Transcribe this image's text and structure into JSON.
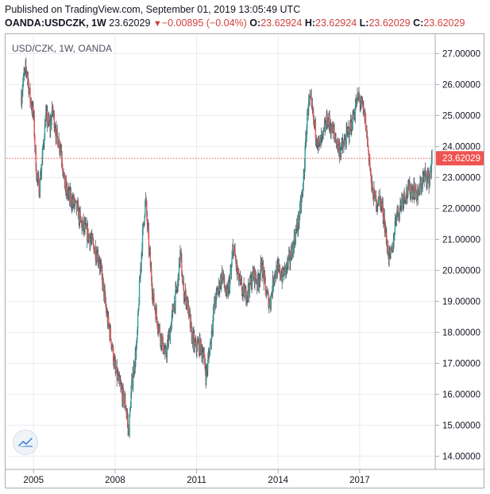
{
  "header": {
    "published": "Published on TradingView.com, September 01, 2019 13:05:49 UTC",
    "symbol": "OANDA:USDCZK, 1W",
    "last": "23.62029",
    "change_arrow": "▼",
    "change": "−0.00895 (−0.04%)",
    "o_label": "O:",
    "o_value": "23.62924",
    "h_label": "H:",
    "h_value": "23.62924",
    "l_label": "L:",
    "l_value": "23.62029",
    "c_label": "C:",
    "c_value": "23.62029"
  },
  "chart_data": {
    "type": "candlestick",
    "symbol_label": "USD/CZK, 1W, OANDA",
    "x_ticks": [
      "2005",
      "2008",
      "2011",
      "2014",
      "2017"
    ],
    "y_ticks": [
      "14.00000",
      "15.00000",
      "16.00000",
      "17.00000",
      "18.00000",
      "19.00000",
      "20.00000",
      "21.00000",
      "22.00000",
      "23.00000",
      "24.00000",
      "25.00000",
      "26.00000",
      "27.00000"
    ],
    "ylim": [
      13.6,
      27.6
    ],
    "xlim": [
      2004.0,
      2019.75
    ],
    "last_price": 23.62029,
    "last_price_label": "23.62029",
    "colors": {
      "up": "#26a69a",
      "down": "#ef5350",
      "wick": "#555b66",
      "price_line": "#ef5350"
    },
    "grid": true,
    "anchors": [
      [
        2004.55,
        25.6
      ],
      [
        2004.65,
        26.3
      ],
      [
        2004.75,
        26.5
      ],
      [
        2004.85,
        25.7
      ],
      [
        2005.0,
        25.0
      ],
      [
        2005.1,
        23.2
      ],
      [
        2005.2,
        22.6
      ],
      [
        2005.3,
        23.4
      ],
      [
        2005.45,
        25.0
      ],
      [
        2005.6,
        24.6
      ],
      [
        2005.7,
        25.2
      ],
      [
        2005.85,
        24.3
      ],
      [
        2006.0,
        24.0
      ],
      [
        2006.15,
        22.7
      ],
      [
        2006.3,
        22.4
      ],
      [
        2006.45,
        22.2
      ],
      [
        2006.6,
        22.0
      ],
      [
        2006.75,
        21.5
      ],
      [
        2006.9,
        21.3
      ],
      [
        2007.1,
        21.0
      ],
      [
        2007.25,
        20.7
      ],
      [
        2007.4,
        20.4
      ],
      [
        2007.55,
        19.6
      ],
      [
        2007.7,
        18.5
      ],
      [
        2007.85,
        17.8
      ],
      [
        2008.0,
        16.8
      ],
      [
        2008.2,
        16.2
      ],
      [
        2008.4,
        15.6
      ],
      [
        2008.5,
        14.7
      ],
      [
        2008.6,
        16.2
      ],
      [
        2008.8,
        17.6
      ],
      [
        2008.9,
        19.5
      ],
      [
        2009.0,
        21.0
      ],
      [
        2009.12,
        22.3
      ],
      [
        2009.25,
        20.7
      ],
      [
        2009.4,
        19.1
      ],
      [
        2009.55,
        18.4
      ],
      [
        2009.7,
        17.8
      ],
      [
        2009.85,
        17.2
      ],
      [
        2010.0,
        17.9
      ],
      [
        2010.15,
        18.8
      ],
      [
        2010.3,
        19.5
      ],
      [
        2010.4,
        20.6
      ],
      [
        2010.5,
        19.4
      ],
      [
        2010.65,
        19.0
      ],
      [
        2010.8,
        18.0
      ],
      [
        2010.95,
        17.5
      ],
      [
        2011.1,
        17.6
      ],
      [
        2011.25,
        17.3
      ],
      [
        2011.35,
        16.6
      ],
      [
        2011.5,
        17.6
      ],
      [
        2011.65,
        18.9
      ],
      [
        2011.8,
        19.4
      ],
      [
        2011.95,
        19.9
      ],
      [
        2012.1,
        19.1
      ],
      [
        2012.25,
        19.8
      ],
      [
        2012.35,
        20.8
      ],
      [
        2012.5,
        19.9
      ],
      [
        2012.65,
        19.4
      ],
      [
        2012.8,
        19.2
      ],
      [
        2012.95,
        19.5
      ],
      [
        2013.1,
        19.9
      ],
      [
        2013.25,
        19.6
      ],
      [
        2013.4,
        20.2
      ],
      [
        2013.55,
        19.3
      ],
      [
        2013.7,
        18.9
      ],
      [
        2013.85,
        19.9
      ],
      [
        2014.0,
        20.0
      ],
      [
        2014.15,
        19.8
      ],
      [
        2014.3,
        20.1
      ],
      [
        2014.45,
        20.4
      ],
      [
        2014.6,
        21.0
      ],
      [
        2014.75,
        21.6
      ],
      [
        2014.9,
        22.5
      ],
      [
        2015.0,
        23.9
      ],
      [
        2015.1,
        25.4
      ],
      [
        2015.2,
        25.4
      ],
      [
        2015.35,
        24.6
      ],
      [
        2015.5,
        24.0
      ],
      [
        2015.65,
        24.3
      ],
      [
        2015.8,
        24.9
      ],
      [
        2015.95,
        24.6
      ],
      [
        2016.1,
        24.3
      ],
      [
        2016.25,
        23.9
      ],
      [
        2016.4,
        24.0
      ],
      [
        2016.55,
        24.4
      ],
      [
        2016.7,
        24.7
      ],
      [
        2016.85,
        25.3
      ],
      [
        2016.95,
        25.6
      ],
      [
        2017.05,
        25.4
      ],
      [
        2017.2,
        24.9
      ],
      [
        2017.35,
        23.6
      ],
      [
        2017.45,
        22.6
      ],
      [
        2017.6,
        22.2
      ],
      [
        2017.75,
        22.3
      ],
      [
        2017.9,
        21.7
      ],
      [
        2018.0,
        20.8
      ],
      [
        2018.1,
        20.4
      ],
      [
        2018.2,
        20.6
      ],
      [
        2018.35,
        21.9
      ],
      [
        2018.45,
        21.9
      ],
      [
        2018.55,
        22.3
      ],
      [
        2018.7,
        22.5
      ],
      [
        2018.85,
        22.6
      ],
      [
        2019.0,
        22.6
      ],
      [
        2019.15,
        22.4
      ],
      [
        2019.3,
        22.9
      ],
      [
        2019.45,
        23.1
      ],
      [
        2019.55,
        22.9
      ],
      [
        2019.67,
        23.62
      ]
    ]
  }
}
